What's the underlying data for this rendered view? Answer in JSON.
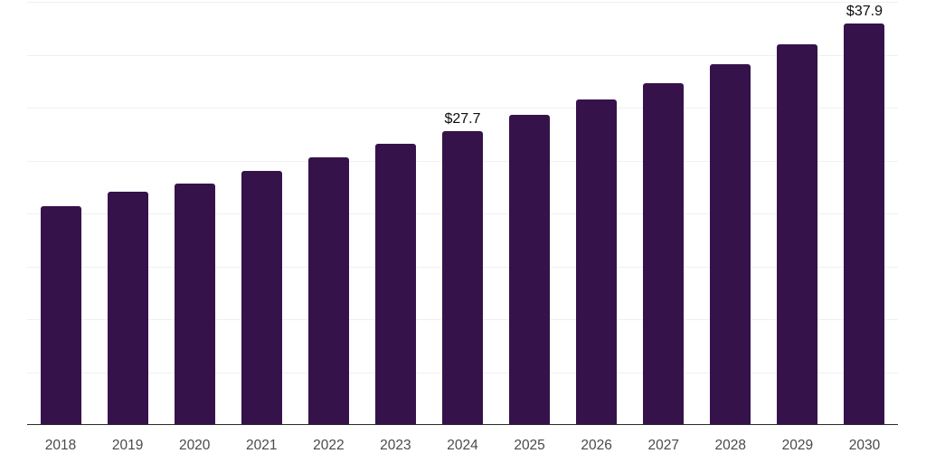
{
  "chart_data": {
    "type": "bar",
    "title": "",
    "xlabel": "",
    "ylabel": "",
    "categories": [
      "2018",
      "2019",
      "2020",
      "2021",
      "2022",
      "2023",
      "2024",
      "2025",
      "2026",
      "2027",
      "2028",
      "2029",
      "2030"
    ],
    "values": [
      20.6,
      22.0,
      22.7,
      23.9,
      25.2,
      26.5,
      27.7,
      29.2,
      30.7,
      32.2,
      34.0,
      35.9,
      37.9
    ],
    "value_labels": {
      "2024": "$27.7",
      "2030": "$37.9"
    },
    "ylim": [
      0,
      40
    ],
    "gridline_step": 5,
    "grid": true,
    "legend_position": "none",
    "y_axis_labels_visible": false,
    "bar_color": "#36124B",
    "axis_line_color": "#2b2b2b",
    "gridline_color": "#f0f0f0",
    "value_label_color": "#0c0c0c",
    "tick_label_color": "#4a4a4a",
    "background_color": "#ffffff"
  }
}
